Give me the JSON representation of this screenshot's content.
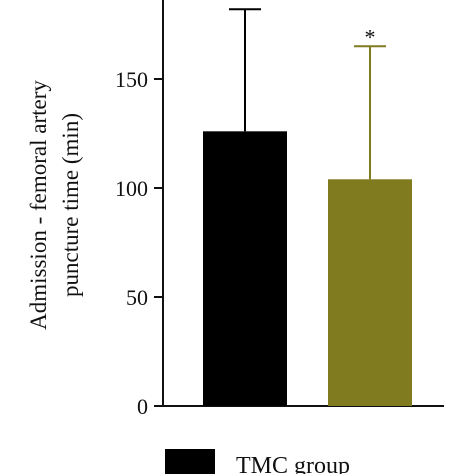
{
  "chart_data": {
    "type": "bar",
    "ylabel_line1": "Admission - femoral artery",
    "ylabel_line2": "puncture time (min)",
    "ylim": [
      0,
      190
    ],
    "yticks": [
      0,
      50,
      100,
      150
    ],
    "bars": [
      {
        "name": "TMC group",
        "value": 126,
        "error_upper": 182,
        "color": "#000000",
        "marker": ""
      },
      {
        "name": "",
        "value": 104,
        "error_upper": 165,
        "color": "#7f7b1e",
        "marker": "*"
      }
    ],
    "legend": [
      {
        "label": "TMC group",
        "color": "#000000"
      }
    ],
    "grid": false
  }
}
